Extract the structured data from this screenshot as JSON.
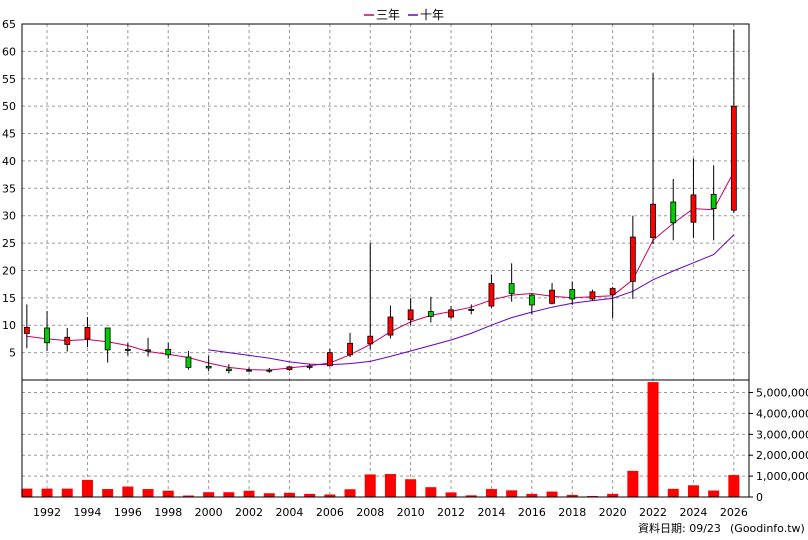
{
  "chart_data": [
    {
      "type": "candlestick",
      "legend": [
        {
          "name": "三年",
          "color": "#cc0066"
        },
        {
          "name": "十年",
          "color": "#6600cc"
        }
      ],
      "legend_placement": "top-center",
      "ylim": [
        0,
        65
      ],
      "yticks": [
        5,
        10,
        15,
        20,
        25,
        30,
        35,
        40,
        45,
        50,
        55,
        60,
        65
      ],
      "grid": true,
      "up_color": "#ff0000",
      "down_color": "#00cc00",
      "candles": [
        {
          "year": 1991,
          "open": 8.5,
          "high": 13.8,
          "low": 5.8,
          "close": 9.6
        },
        {
          "year": 1992,
          "open": 9.5,
          "high": 12.6,
          "low": 5.3,
          "close": 6.8
        },
        {
          "year": 1993,
          "open": 6.5,
          "high": 9.5,
          "low": 5.2,
          "close": 7.8
        },
        {
          "year": 1994,
          "open": 7.5,
          "high": 11.5,
          "low": 6.0,
          "close": 9.6
        },
        {
          "year": 1995,
          "open": 9.5,
          "high": 9.5,
          "low": 3.2,
          "close": 5.5
        },
        {
          "year": 1996,
          "open": 5.6,
          "high": 6.8,
          "low": 4.5,
          "close": 5.4
        },
        {
          "year": 1997,
          "open": 5.5,
          "high": 7.7,
          "low": 4.3,
          "close": 5.3
        },
        {
          "year": 1998,
          "open": 5.6,
          "high": 6.8,
          "low": 3.9,
          "close": 4.6
        },
        {
          "year": 1999,
          "open": 4.2,
          "high": 5.3,
          "low": 1.9,
          "close": 2.3
        },
        {
          "year": 2000,
          "open": 2.5,
          "high": 4.4,
          "low": 1.6,
          "close": 2.2
        },
        {
          "year": 2001,
          "open": 2.0,
          "high": 2.9,
          "low": 1.2,
          "close": 1.7
        },
        {
          "year": 2002,
          "open": 1.8,
          "high": 2.3,
          "low": 1.5,
          "close": 1.7
        },
        {
          "year": 2003,
          "open": 1.6,
          "high": 2.2,
          "low": 1.3,
          "close": 1.8
        },
        {
          "year": 2004,
          "open": 1.9,
          "high": 2.6,
          "low": 1.7,
          "close": 2.4
        },
        {
          "year": 2005,
          "open": 2.5,
          "high": 3.0,
          "low": 1.9,
          "close": 2.3
        },
        {
          "year": 2006,
          "open": 2.6,
          "high": 5.7,
          "low": 2.5,
          "close": 5.0
        },
        {
          "year": 2007,
          "open": 4.6,
          "high": 8.6,
          "low": 4.2,
          "close": 6.7
        },
        {
          "year": 2008,
          "open": 6.6,
          "high": 25.0,
          "low": 5.6,
          "close": 8.0
        },
        {
          "year": 2009,
          "open": 8.2,
          "high": 13.6,
          "low": 7.6,
          "close": 11.5
        },
        {
          "year": 2010,
          "open": 11.0,
          "high": 15.0,
          "low": 10.0,
          "close": 12.8
        },
        {
          "year": 2011,
          "open": 12.5,
          "high": 15.2,
          "low": 10.5,
          "close": 11.6
        },
        {
          "year": 2012,
          "open": 11.5,
          "high": 13.5,
          "low": 11.2,
          "close": 12.8
        },
        {
          "year": 2013,
          "open": 12.7,
          "high": 13.8,
          "low": 12.0,
          "close": 12.9
        },
        {
          "year": 2014,
          "open": 13.5,
          "high": 19.3,
          "low": 13.2,
          "close": 17.6
        },
        {
          "year": 2015,
          "open": 17.6,
          "high": 21.3,
          "low": 14.3,
          "close": 15.8
        },
        {
          "year": 2016,
          "open": 15.5,
          "high": 15.8,
          "low": 12.0,
          "close": 13.7
        },
        {
          "year": 2017,
          "open": 14.0,
          "high": 17.7,
          "low": 13.8,
          "close": 16.4
        },
        {
          "year": 2018,
          "open": 16.5,
          "high": 18.0,
          "low": 13.7,
          "close": 14.8
        },
        {
          "year": 2019,
          "open": 14.8,
          "high": 16.5,
          "low": 14.5,
          "close": 16.1
        },
        {
          "year": 2020,
          "open": 15.6,
          "high": 17.0,
          "low": 11.3,
          "close": 16.7
        },
        {
          "year": 2021,
          "open": 18.0,
          "high": 30.0,
          "low": 14.8,
          "close": 26.1
        },
        {
          "year": 2022,
          "open": 26.0,
          "high": 56.0,
          "low": 24.8,
          "close": 32.1
        },
        {
          "year": 2023,
          "open": 32.5,
          "high": 36.7,
          "low": 25.5,
          "close": 28.7
        },
        {
          "year": 2024,
          "open": 28.8,
          "high": 40.4,
          "low": 25.9,
          "close": 33.8
        },
        {
          "year": 2025,
          "open": 33.9,
          "high": 39.2,
          "low": 25.5,
          "close": 31.3
        },
        {
          "year": 2026,
          "open": 31.0,
          "high": 64.0,
          "low": 30.5,
          "close": 50.0
        }
      ],
      "series": [
        {
          "name": "三年",
          "color": "#cc0066",
          "x": [
            1991,
            1992,
            1993,
            1994,
            1995,
            1996,
            1997,
            1998,
            1999,
            2000,
            2001,
            2002,
            2003,
            2004,
            2005,
            2006,
            2007,
            2008,
            2009,
            2010,
            2011,
            2012,
            2013,
            2014,
            2015,
            2016,
            2017,
            2018,
            2019,
            2020,
            2021,
            2022,
            2023,
            2024,
            2025,
            2026
          ],
          "values": [
            8.0,
            7.5,
            7.2,
            7.4,
            7.0,
            6.3,
            5.2,
            4.7,
            4.1,
            3.1,
            2.3,
            1.9,
            1.8,
            2.2,
            2.6,
            3.1,
            4.6,
            6.5,
            8.8,
            10.6,
            11.8,
            12.5,
            13.3,
            14.6,
            15.5,
            15.8,
            15.3,
            15.0,
            15.2,
            15.4,
            18.3,
            25.5,
            28.6,
            31.3,
            31.1,
            38.0
          ]
        },
        {
          "name": "十年",
          "color": "#6600cc",
          "x": [
            2000,
            2001,
            2002,
            2003,
            2004,
            2005,
            2006,
            2007,
            2008,
            2009,
            2010,
            2011,
            2012,
            2013,
            2014,
            2015,
            2016,
            2017,
            2018,
            2019,
            2020,
            2021,
            2022,
            2023,
            2024,
            2025,
            2026
          ],
          "values": [
            5.5,
            5.0,
            4.5,
            4.0,
            3.3,
            2.9,
            2.8,
            3.0,
            3.4,
            4.3,
            5.3,
            6.3,
            7.3,
            8.5,
            10.0,
            11.4,
            12.4,
            13.3,
            14.0,
            14.5,
            14.9,
            16.2,
            18.3,
            19.9,
            21.4,
            22.9,
            26.5
          ]
        }
      ]
    },
    {
      "type": "bar",
      "ylim": [
        0,
        5500000
      ],
      "yticks": [
        0,
        1000000,
        2000000,
        3000000,
        4000000,
        5000000
      ],
      "ytick_labels": [
        "0",
        "1,000,000",
        "2,000,000",
        "3,000,000",
        "4,000,000",
        "5,000,000"
      ],
      "color": "#ff0000",
      "grid": true,
      "x": [
        1991,
        1992,
        1993,
        1994,
        1995,
        1996,
        1997,
        1998,
        1999,
        2000,
        2001,
        2002,
        2003,
        2004,
        2005,
        2006,
        2007,
        2008,
        2009,
        2010,
        2011,
        2012,
        2013,
        2014,
        2015,
        2016,
        2017,
        2018,
        2019,
        2020,
        2021,
        2022,
        2023,
        2024,
        2025,
        2026
      ],
      "values": [
        400000,
        400000,
        400000,
        820000,
        380000,
        500000,
        380000,
        300000,
        70000,
        230000,
        230000,
        300000,
        180000,
        200000,
        150000,
        120000,
        370000,
        1080000,
        1100000,
        850000,
        470000,
        220000,
        80000,
        380000,
        320000,
        150000,
        260000,
        100000,
        50000,
        150000,
        1250000,
        5500000,
        390000,
        560000,
        310000,
        1050000
      ]
    }
  ],
  "xticks": [
    1992,
    1994,
    1996,
    1998,
    2000,
    2002,
    2004,
    2006,
    2008,
    2010,
    2012,
    2014,
    2016,
    2018,
    2020,
    2022,
    2024,
    2026
  ],
  "footer": {
    "date_text": "資料日期: 09/23",
    "source_text": "(Goodinfo.tw)"
  }
}
